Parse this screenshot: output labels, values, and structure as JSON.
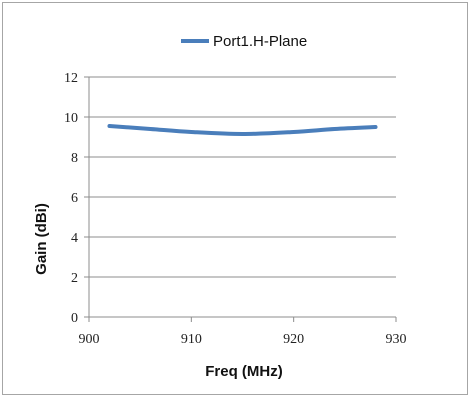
{
  "chart_data": {
    "type": "line",
    "title": "",
    "xlabel": "Freq (MHz)",
    "ylabel": "Gain (dBi)",
    "xlim": [
      900,
      930
    ],
    "ylim": [
      0,
      12
    ],
    "x_ticks": [
      "900",
      "910",
      "920",
      "930"
    ],
    "y_ticks": [
      "0",
      "2",
      "4",
      "6",
      "8",
      "10",
      "12"
    ],
    "grid": "horizontal",
    "legend_position": "top",
    "series": [
      {
        "name": "Port1.H-Plane",
        "color": "#4a7ebb",
        "x": [
          902,
          906,
          910,
          915,
          920,
          924,
          928
        ],
        "y": [
          9.55,
          9.4,
          9.25,
          9.15,
          9.25,
          9.4,
          9.5
        ]
      }
    ]
  }
}
